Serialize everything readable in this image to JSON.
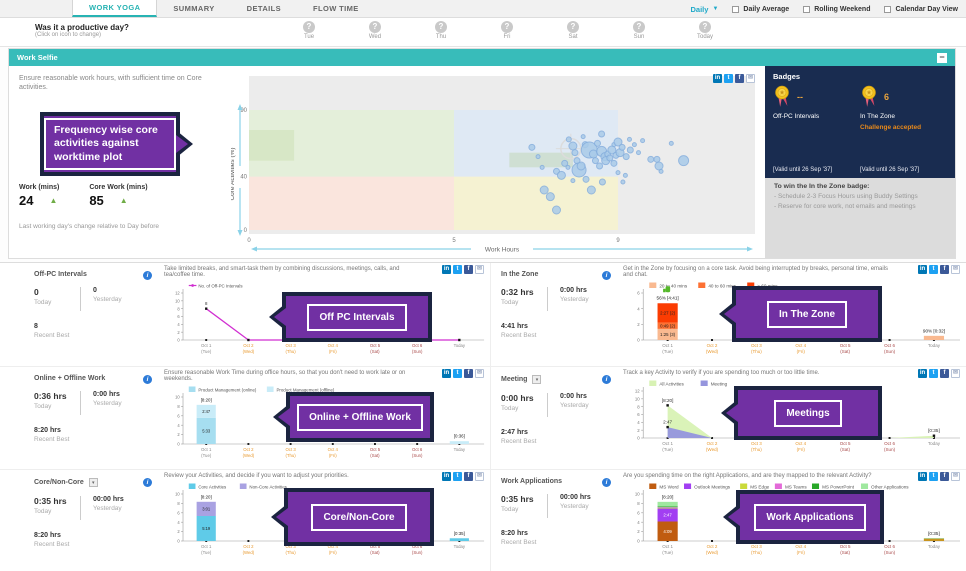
{
  "top_nav": {
    "tabs": [
      {
        "label": "WORK YOGA",
        "active": true
      },
      {
        "label": "SUMMARY",
        "active": false
      },
      {
        "label": "DETAILS",
        "active": false
      },
      {
        "label": "FLOW TIME",
        "active": false
      }
    ],
    "period": "Daily",
    "checkboxes": [
      "Daily Average",
      "Rolling Weekend",
      "Calendar Day View"
    ]
  },
  "productive_day": {
    "question": "Was it a productive day?",
    "hint": "(Click on icon to change)",
    "days": [
      "Tue",
      "Wed",
      "Thu",
      "Fri",
      "Sat",
      "Sun",
      "Today"
    ]
  },
  "labels": {
    "today": "Today",
    "yesterday": "Yesterday",
    "best": "Recent Best"
  },
  "social": [
    {
      "id": "linkedin",
      "glyph": "in",
      "c": "#0077b5"
    },
    {
      "id": "twitter",
      "glyph": "t",
      "c": "#1da1f2"
    },
    {
      "id": "facebook",
      "glyph": "f",
      "c": "#3b5998"
    },
    {
      "id": "mail",
      "glyph": "✉",
      "c": "#ffffff"
    }
  ],
  "days": [
    {
      "d": "Oct 1",
      "w": "(Tue)",
      "c": "#8a8a8a"
    },
    {
      "d": "Oct 2",
      "w": "(Wed)",
      "c": "#e8992e"
    },
    {
      "d": "Oct 3",
      "w": "(Thu)",
      "c": "#e8992e"
    },
    {
      "d": "Oct 4",
      "w": "(Fri)",
      "c": "#e8992e"
    },
    {
      "d": "Oct 5",
      "w": "(Sat)",
      "c": "#a84848"
    },
    {
      "d": "Oct 6",
      "w": "(Sun)",
      "c": "#a84848"
    },
    {
      "d": "Today",
      "w": "",
      "c": "#8a8a8a"
    }
  ],
  "work_selfie": {
    "title": "Work Selfie",
    "description": "Ensure reasonable work hours, with sufficient time on Core activities.",
    "stats": [
      {
        "label": "Work (mins)",
        "value": "24",
        "trend": "up"
      },
      {
        "label": "Core Work (mins)",
        "value": "85",
        "trend": "up"
      }
    ],
    "footnote": "Last working day's change relative to Day before",
    "collapse_label": "−",
    "chart": {
      "type": "scatter",
      "xlabel": "Work Hours",
      "ylabel": "Core Activities (%)",
      "xticks": [
        0,
        5,
        9
      ],
      "yticks": [
        0,
        40,
        90
      ],
      "zones": [
        {
          "x": [
            0,
            5
          ],
          "y": [
            40,
            90
          ],
          "c": "#e4efda"
        },
        {
          "x": [
            5,
            9
          ],
          "y": [
            40,
            90
          ],
          "c": "#dfe9f4"
        },
        {
          "x": [
            0,
            5
          ],
          "y": [
            0,
            40
          ],
          "c": "#fae5dd"
        },
        {
          "x": [
            5,
            9
          ],
          "y": [
            0,
            40
          ],
          "c": "#f5f2d2"
        },
        {
          "x": [
            0,
            1.1
          ],
          "y": [
            52,
            75
          ],
          "c": "#d7e7c6"
        },
        {
          "x": [
            6.35,
            7.9
          ],
          "y": [
            47,
            58
          ],
          "c": "#cfdfd3"
        }
      ],
      "points": [
        [
          6.9,
          62,
          3
        ],
        [
          7.05,
          55,
          2
        ],
        [
          7.15,
          47,
          2
        ],
        [
          7.2,
          30,
          4
        ],
        [
          7.35,
          25,
          4
        ],
        [
          7.5,
          15,
          4
        ],
        [
          7.5,
          44,
          3
        ],
        [
          7.62,
          41,
          4
        ],
        [
          7.7,
          50,
          3
        ],
        [
          7.78,
          47,
          2
        ],
        [
          7.8,
          68,
          2.5
        ],
        [
          7.9,
          63,
          4
        ],
        [
          7.9,
          37,
          2
        ],
        [
          7.95,
          58,
          3
        ],
        [
          8.0,
          52,
          3
        ],
        [
          8.05,
          45,
          7
        ],
        [
          8.1,
          48,
          4
        ],
        [
          8.15,
          70,
          2
        ],
        [
          8.2,
          64,
          3
        ],
        [
          8.22,
          38,
          3
        ],
        [
          8.3,
          60,
          8
        ],
        [
          8.35,
          30,
          4
        ],
        [
          8.4,
          57,
          4
        ],
        [
          8.45,
          52,
          3
        ],
        [
          8.5,
          65,
          3
        ],
        [
          8.55,
          48,
          3
        ],
        [
          8.6,
          59,
          5
        ],
        [
          8.6,
          72,
          3
        ],
        [
          8.62,
          36,
          3
        ],
        [
          8.68,
          55,
          4
        ],
        [
          8.7,
          52,
          4
        ],
        [
          8.75,
          57,
          3
        ],
        [
          8.8,
          54,
          3
        ],
        [
          8.85,
          60,
          4
        ],
        [
          8.9,
          50,
          3
        ],
        [
          8.9,
          64,
          2
        ],
        [
          8.95,
          56,
          3
        ],
        [
          9.0,
          43,
          2
        ],
        [
          9.0,
          66,
          4
        ],
        [
          9.05,
          58,
          4
        ],
        [
          9.1,
          62,
          3
        ],
        [
          9.12,
          36,
          2
        ],
        [
          9.18,
          41,
          2
        ],
        [
          9.2,
          55,
          3
        ],
        [
          9.28,
          68,
          2
        ],
        [
          9.3,
          60,
          3
        ],
        [
          9.4,
          64,
          2
        ],
        [
          9.5,
          58,
          2
        ],
        [
          9.6,
          67,
          2
        ],
        [
          9.8,
          53,
          3
        ],
        [
          9.95,
          53,
          3
        ],
        [
          10.0,
          48,
          4
        ],
        [
          10.05,
          44,
          2
        ],
        [
          10.3,
          65,
          2
        ],
        [
          10.6,
          52,
          5
        ]
      ]
    }
  },
  "badges": {
    "title": "Badges",
    "items": [
      {
        "value": "--",
        "label": "Off-PC Intervals",
        "note": "",
        "valid": "[Valid until 26 Sep '37]"
      },
      {
        "value": "6",
        "label": "In The Zone",
        "note": "Challenge accepted",
        "valid": "[Valid until 26 Sep '37]"
      }
    ],
    "tip_title": "To win the In the Zone badge:",
    "tips": [
      "- Schedule 2-3 Focus Hours using Buddy Settings",
      "- Reserve for core work, not emails and meetings"
    ]
  },
  "callouts": {
    "work_selfie": "Frequency wise core activities against worktime plot",
    "off_pc": "Off PC Intervals",
    "in_zone": "In The Zone",
    "online": "Online + Offline Work",
    "meeting": "Meetings",
    "core": "Core/Non-Core",
    "work_apps": "Work Applications"
  },
  "sections": [
    {
      "id": "off-pc-intervals",
      "title": "Off-PC Intervals",
      "dropdown": false,
      "today": "0",
      "yesterday": "0",
      "best": "8",
      "description": "Take limited breaks, and smart-task them by combining discussions, meetings, calls, and tea/coffee time.",
      "legend": [
        {
          "label": "No. of Off-PC Intervals",
          "c": "#d12fd1",
          "line": true
        }
      ],
      "chart": {
        "type": "line",
        "ymax": 12,
        "ystep": 2,
        "color": "#d12fd1",
        "values": [
          8,
          0,
          0,
          0,
          0,
          0,
          0
        ],
        "point_labels": {
          "0": "8"
        }
      }
    },
    {
      "id": "in-the-zone",
      "title": "In the Zone",
      "dropdown": false,
      "today": "0:32 hrs",
      "yesterday": "0:00 hrs",
      "best": "4:41 hrs",
      "description": "Get in the Zone by focusing on a core task. Avoid being interrupted by breaks, personal time, emails and chat.",
      "legend": [
        {
          "label": "20 to 40 mins",
          "c": "#f9b990"
        },
        {
          "label": "40 to 60 mins",
          "c": "#fd7133"
        },
        {
          "label": "> 60 mins",
          "c": "#fb3c02"
        }
      ],
      "chart": {
        "type": "stacked",
        "ymax": 6,
        "ystep": 2,
        "bars": {
          "0": {
            "segments": [
              {
                "v": 1.42,
                "label": "1:25 (3)",
                "c": "#f9b990"
              },
              {
                "v": 0.82,
                "label": "0:49 (2)",
                "c": "#fd7133"
              },
              {
                "v": 2.45,
                "label": "2:27 (2)",
                "c": "#fb3c02"
              }
            ],
            "top": "56% [4:41]",
            "thumb": true
          },
          "6": {
            "segments": [
              {
                "v": 0.53,
                "c": "#f9b990"
              }
            ],
            "top": "90% [0:32]"
          }
        }
      }
    },
    {
      "id": "online-offline-work",
      "title": "Online + Offline Work",
      "dropdown": false,
      "today": "0:36 hrs",
      "yesterday": "0:00 hrs",
      "best": "8:20 hrs",
      "description": "Ensure reasonable Work Time during office hours, so that you don't need to work late or on weekends.",
      "legend": [
        {
          "label": "Product Management (online)",
          "c": "#a6def0"
        },
        {
          "label": "Product Management (offline)",
          "c": "#c9ecf8"
        }
      ],
      "chart": {
        "type": "stacked",
        "ymax": 10,
        "ystep": 2,
        "bars": {
          "0": {
            "segments": [
              {
                "v": 5.55,
                "label": "5:33",
                "c": "#a6def0"
              },
              {
                "v": 2.78,
                "label": "2:47",
                "c": "#c9ecf8"
              }
            ],
            "top": "[8:20]"
          },
          "6": {
            "segments": [
              {
                "v": 0.6,
                "c": "#c9ecf8"
              }
            ],
            "top": "[0:36]"
          }
        }
      }
    },
    {
      "id": "meeting",
      "title": "Meeting",
      "dropdown": true,
      "today": "0:00 hrs",
      "yesterday": "0:00 hrs",
      "best": "2:47 hrs",
      "description": "Track a key Activity to verify if you are spending too much or too little time.",
      "legend": [
        {
          "label": "All Activities",
          "c": "#d8f2b4"
        },
        {
          "label": "Meeting",
          "c": "#9595dd"
        }
      ],
      "chart": {
        "type": "area",
        "ymax": 12,
        "ystep": 2,
        "series": [
          {
            "c": "#d8f2b4",
            "values": [
              8.33,
              0,
              0,
              0,
              0,
              0,
              0.58
            ],
            "labels": {
              "0": "[8:20]",
              "6": "[0:35]"
            }
          },
          {
            "c": "#9595dd",
            "values": [
              2.78,
              0,
              0,
              0,
              0,
              0,
              0
            ],
            "labels": {
              "0": "2:47"
            }
          }
        ]
      }
    },
    {
      "id": "core-non-core",
      "title": "Core/Non-Core",
      "dropdown": true,
      "today": "0:35 hrs",
      "yesterday": "00:00 hrs",
      "best": "8:20 hrs",
      "description": "Review your Activities, and decide if you want to adjust your priorities.",
      "legend": [
        {
          "label": "Core Activities",
          "c": "#5fcbe8"
        },
        {
          "label": "Non-Core Activities",
          "c": "#a9a2e2"
        }
      ],
      "chart": {
        "type": "stacked",
        "ymax": 10,
        "ystep": 2,
        "bars": {
          "0": {
            "segments": [
              {
                "v": 5.32,
                "label": "5:19",
                "c": "#5fcbe8"
              },
              {
                "v": 3.02,
                "label": "3:01",
                "c": "#a9a2e2"
              }
            ],
            "top": "[8:20]"
          },
          "6": {
            "segments": [
              {
                "v": 0.58,
                "c": "#5fcbe8"
              }
            ],
            "top": "[0:35]"
          }
        }
      }
    },
    {
      "id": "work-applications",
      "title": "Work Applications",
      "dropdown": false,
      "today": "0:35 hrs",
      "yesterday": "00:00 hrs",
      "best": "8:20 hrs",
      "description": "Are you spending time on the right Applications, and are they mapped to the relevant Activity?",
      "legend": [
        {
          "label": "MS Word",
          "c": "#c05c10"
        },
        {
          "label": "Outlook Meetings",
          "c": "#a23ff2"
        },
        {
          "label": "MS Edge",
          "c": "#cada3a"
        },
        {
          "label": "MS Teams",
          "c": "#e36ad8"
        },
        {
          "label": "MS PowerPoint",
          "c": "#28a828"
        },
        {
          "label": "Other Applications",
          "c": "#9fe89f"
        }
      ],
      "chart": {
        "type": "stacked",
        "ymax": 10,
        "ystep": 2,
        "bars": {
          "0": {
            "segments": [
              {
                "v": 4.15,
                "label": "4:09",
                "c": "#c05c10",
                "tc": "#ffffff"
              },
              {
                "v": 2.78,
                "label": "2:47",
                "c": "#a23ff2",
                "tc": "#ffffff"
              },
              {
                "v": 0.13,
                "c": "#cada3a"
              },
              {
                "v": 0.12,
                "c": "#e36ad8"
              },
              {
                "v": 0.18,
                "c": "#28a828"
              },
              {
                "v": 0.97,
                "c": "#9fe89f"
              }
            ],
            "top": "[8:20]"
          },
          "6": {
            "segments": [
              {
                "v": 0.5,
                "c": "#c8941e"
              },
              {
                "v": 0.08,
                "c": "#58b858"
              }
            ],
            "top": "[0:35]"
          }
        }
      }
    }
  ]
}
